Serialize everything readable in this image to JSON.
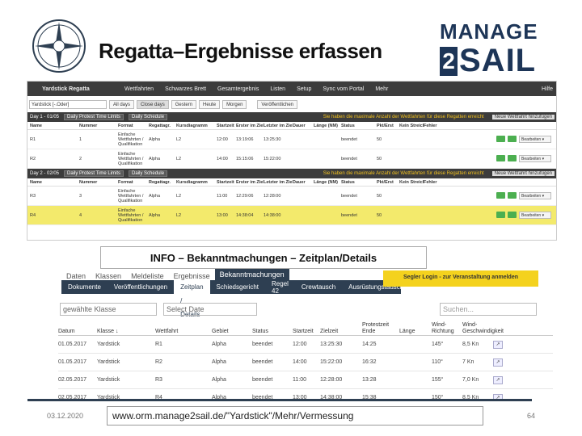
{
  "slide": {
    "title": "Regatta–Ergebnisse erfassen",
    "date": "03.12.2020",
    "url": "www.orm.manage2sail.de/\"Yardstick\"/Mehr/Vermessung",
    "page_number": "64"
  },
  "brand": {
    "manage": "MANAGE",
    "two": "2",
    "sail": "SAIL"
  },
  "screenshot1": {
    "nav": {
      "brand": "Yardstick Regatta",
      "items": [
        "Wettfahrten",
        "Schwarzes Brett",
        "Gesamtergebnis",
        "Listen",
        "Setup",
        "Sync vom Portal",
        "Mehr"
      ],
      "help": "Hilfe"
    },
    "filter": {
      "select": "Yardstick [-.Oder]",
      "buttons": [
        "All days",
        "Close days",
        "Gestern",
        "Heute",
        "Morgen"
      ],
      "publish": "Veröffentlichen"
    },
    "days": [
      {
        "header": "Day 1 - 01/05",
        "tags": [
          "Daily Protest Time Limits",
          "Daily Schedule"
        ],
        "warning": "Sie haben die maximale Anzahl der Wettfahrten für diese Regatten erreicht",
        "new_button": "Neue Wettfahrt hinzufügen",
        "rows": [
          {
            "name": "R1",
            "num": "1",
            "format": "Einfache Wettfahrten / Qualifikation",
            "gruppe": "Alpha",
            "kurs": "L2",
            "start": "12:00",
            "ziel_erster": "13:19:06",
            "ziel_letzter": "13:25:30",
            "dauer": "",
            "laenge": "",
            "status": "beendet",
            "pkt": "50",
            "highlight": false
          },
          {
            "name": "R2",
            "num": "2",
            "format": "Einfache Wettfahrten / Qualifikation",
            "gruppe": "Alpha",
            "kurs": "L2",
            "start": "14:00",
            "ziel_erster": "15:15:06",
            "ziel_letzter": "15:22:00",
            "dauer": "",
            "laenge": "",
            "status": "beendet",
            "pkt": "50",
            "highlight": false
          }
        ]
      },
      {
        "header": "Day 2 - 02/05",
        "tags": [
          "Daily Protest Time Limits",
          "Daily Schedule"
        ],
        "warning": "Sie haben die maximale Anzahl der Wettfahrten für diese Regatten erreicht",
        "new_button": "Neue Wettfahrt hinzufügen",
        "rows": [
          {
            "name": "R3",
            "num": "3",
            "format": "Einfache Wettfahrten / Qualifikation",
            "gruppe": "Alpha",
            "kurs": "L2",
            "start": "11:00",
            "ziel_erster": "12:29:06",
            "ziel_letzter": "12:28:00",
            "dauer": "",
            "laenge": "",
            "status": "beendet",
            "pkt": "50",
            "highlight": false
          },
          {
            "name": "R4",
            "num": "4",
            "format": "Einfache Wettfahrten / Qualifikation",
            "gruppe": "Alpha",
            "kurs": "L2",
            "start": "13:00",
            "ziel_erster": "14:38:04",
            "ziel_letzter": "14:38:00",
            "dauer": "",
            "laenge": "",
            "status": "beendet",
            "pkt": "50",
            "highlight": true
          }
        ]
      }
    ],
    "columns": [
      "Name",
      "Nummer",
      "Format",
      "Regattagr.",
      "Kursdiagramm",
      "Startzeit",
      "Erster im Ziel",
      "Letzter im Ziel",
      "Dauer",
      "Länge (NM)",
      "Status",
      "Pkt/Erst",
      "Kein Streich.",
      "Fehler"
    ],
    "edit_label": "Bearbeiten"
  },
  "info_box": "INFO – Bekanntmachungen – Zeitplan/Details",
  "screenshot2": {
    "tabs1": [
      "Daten",
      "Klassen",
      "Meldeliste",
      "Ergebnisse",
      "Bekanntmachungen"
    ],
    "tabs1_active": 4,
    "seglogin": "Segler Login - zur Veranstaltung anmelden",
    "tabs2": [
      "Dokumente",
      "Veröffentlichungen",
      "Zeitplan / Details",
      "Schiedsgericht",
      "Regel 42",
      "Crewtausch",
      "Ausrüstungstausch"
    ],
    "tabs2_active": 2,
    "filter_class": "gewählte Klasse",
    "filter_date": "Select Date",
    "search_placeholder": "Suchen...",
    "headers": [
      "Datum",
      "Klasse ↓",
      "Wettfahrt",
      "Gebiet",
      "Status",
      "Startzeit",
      "Zielzeit",
      "Protestzeit Ende",
      "Länge",
      "Wind-Richtung",
      "Wind-Geschwindigkeit"
    ],
    "rows": [
      {
        "datum": "01.05.2017",
        "klasse": "Yardstick",
        "wf": "R1",
        "gebiet": "Alpha",
        "status": "beendet",
        "start": "12:00",
        "ziel": "13:25:30",
        "protest": "14:25",
        "laenge": "",
        "richtung": "145°",
        "speed": "8,5 Kn"
      },
      {
        "datum": "01.05.2017",
        "klasse": "Yardstick",
        "wf": "R2",
        "gebiet": "Alpha",
        "status": "beendet",
        "start": "14:00",
        "ziel": "15:22:00",
        "protest": "16:32",
        "laenge": "",
        "richtung": "110°",
        "speed": "7 Kn"
      },
      {
        "datum": "02.05.2017",
        "klasse": "Yardstick",
        "wf": "R3",
        "gebiet": "Alpha",
        "status": "beendet",
        "start": "11:00",
        "ziel": "12:28:00",
        "protest": "13:28",
        "laenge": "",
        "richtung": "155°",
        "speed": "7,0 Kn"
      },
      {
        "datum": "02.05.2017",
        "klasse": "Yardstick",
        "wf": "R4",
        "gebiet": "Alpha",
        "status": "beendet",
        "start": "13:00",
        "ziel": "14:38:00",
        "protest": "15:38",
        "laenge": "",
        "richtung": "150°",
        "speed": "8,5 Kn"
      }
    ]
  },
  "colors": {
    "navy": "#2e3f52",
    "highlight": "#f3ea6c",
    "yellow": "#f4d21e",
    "green": "#4caf50"
  }
}
